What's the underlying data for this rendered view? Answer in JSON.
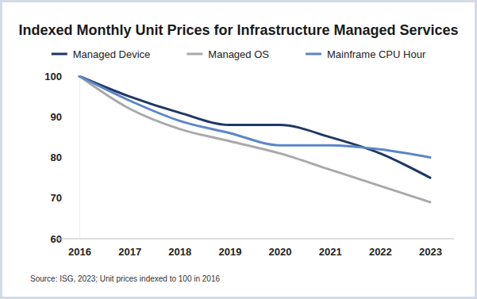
{
  "chart_data": {
    "type": "line",
    "title": "Indexed Monthly Unit Prices for Infrastructure Managed Services",
    "source": "Source: ISG, 2023; Unit prices indexed to 100 in 2016",
    "categories": [
      "2016",
      "2017",
      "2018",
      "2019",
      "2020",
      "2021",
      "2022",
      "2023"
    ],
    "series": [
      {
        "name": "Managed Device",
        "color": "#1f3864",
        "values": [
          100,
          95,
          91,
          88,
          88,
          85,
          81,
          75
        ]
      },
      {
        "name": "Managed OS",
        "color": "#a9a9a9",
        "values": [
          100,
          92,
          87,
          84,
          81,
          77,
          73,
          69
        ]
      },
      {
        "name": "Mainframe CPU Hour",
        "color": "#5b86c8",
        "values": [
          100,
          94,
          89,
          86,
          83,
          83,
          82,
          80
        ]
      }
    ],
    "ylim": [
      60,
      100
    ],
    "yticks": [
      60,
      70,
      80,
      90,
      100
    ],
    "grid": false,
    "legend": "top"
  }
}
